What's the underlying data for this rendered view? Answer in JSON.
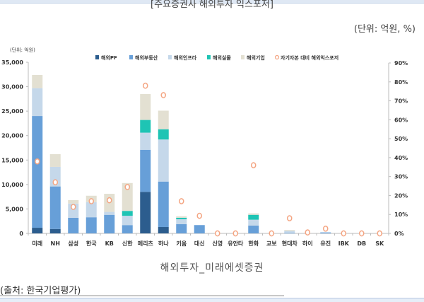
{
  "header": {
    "title": "[주요증권사 해외투자 익스포저]",
    "unit_note": "(단위: 억원, %)"
  },
  "caption": "해외투자_미래에셋증권",
  "source": "(출처: 한국기업평가)",
  "chart_data": {
    "type": "bar",
    "stacked": true,
    "title": "",
    "unit_label": "(단위: 억원)",
    "xlabel": "",
    "ylabel": "억원",
    "y2label": "%",
    "ylim": [
      0,
      35000
    ],
    "y2lim": [
      0,
      90
    ],
    "yticks": [
      "0",
      "5,000",
      "10,000",
      "15,000",
      "20,000",
      "25,000",
      "30,000",
      "35,000"
    ],
    "y2ticks": [
      "0%",
      "10%",
      "20%",
      "30%",
      "40%",
      "50%",
      "60%",
      "70%",
      "80%",
      "90%"
    ],
    "grid": false,
    "legend_position": "top",
    "categories": [
      "미래",
      "NH",
      "삼성",
      "한국",
      "KB",
      "신한",
      "메리츠",
      "하나",
      "키움",
      "대신",
      "신영",
      "유안타",
      "한화",
      "교보",
      "현대차",
      "하이",
      "유진",
      "IBK",
      "DB",
      "SK"
    ],
    "series": [
      {
        "name": "해외PF",
        "color": "#2c5d8e",
        "axis": "left",
        "values": [
          1150,
          900,
          0,
          0,
          0,
          0,
          8500,
          1300,
          0,
          0,
          0,
          0,
          0,
          0,
          0,
          0,
          0,
          0,
          0,
          0
        ]
      },
      {
        "name": "해외부동산",
        "color": "#679fd8",
        "axis": "left",
        "values": [
          22850,
          8700,
          3200,
          3300,
          3800,
          1700,
          8600,
          9300,
          1900,
          1700,
          0,
          0,
          1600,
          0,
          100,
          0,
          200,
          0,
          0,
          0
        ]
      },
      {
        "name": "해외인프라",
        "color": "#c5d8ea",
        "axis": "left",
        "values": [
          5700,
          4000,
          2900,
          3100,
          600,
          1900,
          3500,
          8600,
          1000,
          0,
          0,
          0,
          1200,
          0,
          400,
          0,
          0,
          0,
          0,
          0
        ]
      },
      {
        "name": "해외실물",
        "color": "#1ec4b4",
        "axis": "left",
        "values": [
          0,
          0,
          0,
          0,
          0,
          1000,
          2600,
          2100,
          300,
          0,
          0,
          0,
          1000,
          0,
          0,
          0,
          0,
          0,
          0,
          0
        ]
      },
      {
        "name": "해외기업",
        "color": "#e3e0d2",
        "axis": "left",
        "values": [
          2700,
          2600,
          700,
          1300,
          3700,
          5700,
          5300,
          3800,
          300,
          0,
          0,
          0,
          300,
          0,
          200,
          0,
          0,
          0,
          0,
          0
        ]
      },
      {
        "name": "자기자본 대비 해외익스포저",
        "color": "#f4a582",
        "axis": "right",
        "type": "scatter",
        "values": [
          38,
          27,
          14,
          17,
          17.5,
          24.5,
          78,
          73,
          17,
          9.3,
          0,
          0,
          36,
          0,
          8,
          0.5,
          2.5,
          0,
          0,
          0
        ]
      }
    ]
  }
}
